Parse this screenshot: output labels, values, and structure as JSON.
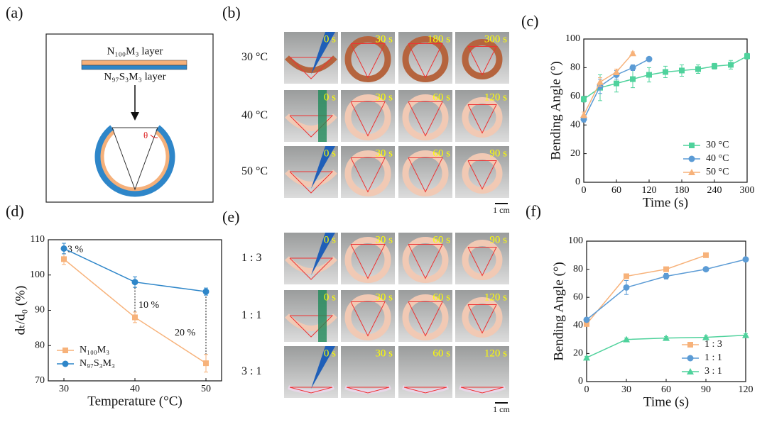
{
  "diagram": {
    "panel": "(a)",
    "layer_top": "N₁₀₀M₃ layer",
    "layer_bottom": "N₉₇S₃M₃ layer",
    "angle": "θ"
  },
  "photos_b": {
    "panel": "(b)",
    "scale_bar": "1 cm",
    "rows": [
      {
        "label": "30 °C",
        "times": [
          "0 s",
          "30 s",
          "180 s",
          "300 s"
        ]
      },
      {
        "label": "40 °C",
        "times": [
          "0 s",
          "30 s",
          "60 s",
          "120 s"
        ]
      },
      {
        "label": "50 °C",
        "times": [
          "0 s",
          "30 s",
          "60 s",
          "90 s"
        ]
      }
    ]
  },
  "photos_e": {
    "panel": "(e)",
    "scale_bar": "1 cm",
    "rows": [
      {
        "label": "1 : 3",
        "times": [
          "0 s",
          "30 s",
          "60 s",
          "90 s"
        ]
      },
      {
        "label": "1 : 1",
        "times": [
          "0 s",
          "30 s",
          "60 s",
          "120 s"
        ]
      },
      {
        "label": "3 : 1",
        "times": [
          "0 s",
          "30 s",
          "60 s",
          "120 s"
        ]
      }
    ]
  },
  "chart_data": [
    {
      "type": "line",
      "panel": "(c)",
      "xlabel": "Time (s)",
      "ylabel": "Bending Angle (°)",
      "xlim": [
        0,
        300
      ],
      "xticks": [
        0,
        60,
        120,
        180,
        240,
        300
      ],
      "ylim": [
        0,
        100
      ],
      "yticks": [
        0,
        20,
        40,
        60,
        80,
        100
      ],
      "legend": "lower right",
      "series": [
        {
          "name": "30 °C",
          "color": "#4fd29c",
          "marker": "square",
          "x": [
            0,
            30,
            60,
            90,
            120,
            150,
            180,
            210,
            240,
            270,
            300
          ],
          "values": [
            58,
            66,
            69,
            72,
            75,
            77,
            78,
            79,
            81,
            82,
            88
          ],
          "errors": [
            2,
            9,
            6,
            6,
            5,
            4,
            4,
            3,
            2,
            3,
            2
          ]
        },
        {
          "name": "40 °C",
          "color": "#5b9bd5",
          "marker": "circle",
          "x": [
            0,
            30,
            60,
            90,
            120
          ],
          "values": [
            44,
            67,
            75,
            80,
            86
          ],
          "errors": [
            2,
            5,
            3,
            2,
            1
          ]
        },
        {
          "name": "50 °C",
          "color": "#f7b27a",
          "marker": "triangle",
          "x": [
            0,
            30,
            60,
            90
          ],
          "values": [
            47,
            70,
            77,
            90
          ],
          "errors": [
            2,
            3,
            2,
            1
          ]
        }
      ]
    },
    {
      "type": "line",
      "panel": "(d)",
      "xlabel": "Temperature (°C)",
      "ylabel": "dₜ/d₀ (%)",
      "xlim": [
        27.8,
        52.2
      ],
      "xticks": [
        30,
        40,
        50
      ],
      "ylim": [
        70,
        110
      ],
      "yticks": [
        70,
        80,
        90,
        100,
        110
      ],
      "legend": "lower left",
      "annotations": [
        "3 %",
        "10 %",
        "20 %"
      ],
      "series": [
        {
          "name": "N₁₀₀M₃",
          "color": "#f7b27a",
          "marker": "square",
          "x": [
            30,
            40,
            50
          ],
          "values": [
            104.5,
            88,
            75
          ],
          "errors": [
            1.5,
            1.5,
            2.5
          ]
        },
        {
          "name": "N₉₇S₃M₃",
          "color": "#2e86c9",
          "marker": "circle",
          "x": [
            30,
            40,
            50
          ],
          "values": [
            107.5,
            98,
            95.3
          ],
          "errors": [
            1.5,
            1.5,
            1
          ]
        }
      ]
    },
    {
      "type": "line",
      "panel": "(f)",
      "xlabel": "Time (s)",
      "ylabel": "Bending Angle (°)",
      "xlim": [
        0,
        120
      ],
      "xticks": [
        0,
        30,
        60,
        90,
        120
      ],
      "ylim": [
        0,
        100
      ],
      "yticks": [
        0,
        20,
        40,
        60,
        80,
        100
      ],
      "legend": "lower right",
      "series": [
        {
          "name": "1 : 3",
          "color": "#f7b27a",
          "marker": "square",
          "x": [
            0,
            30,
            60,
            90
          ],
          "values": [
            41,
            75,
            80,
            90
          ],
          "errors": [
            1,
            1,
            1,
            1
          ]
        },
        {
          "name": "1 : 1",
          "color": "#5b9bd5",
          "marker": "circle",
          "x": [
            0,
            30,
            60,
            90,
            120
          ],
          "values": [
            44,
            67,
            75,
            80,
            87
          ],
          "errors": [
            1,
            5,
            2,
            1,
            1
          ]
        },
        {
          "name": "3 : 1",
          "color": "#4fd29c",
          "marker": "triangle",
          "x": [
            0,
            30,
            60,
            90,
            120
          ],
          "values": [
            17,
            30,
            31,
            31.5,
            33
          ],
          "errors": [
            1,
            1,
            1,
            1,
            1
          ]
        }
      ]
    }
  ]
}
